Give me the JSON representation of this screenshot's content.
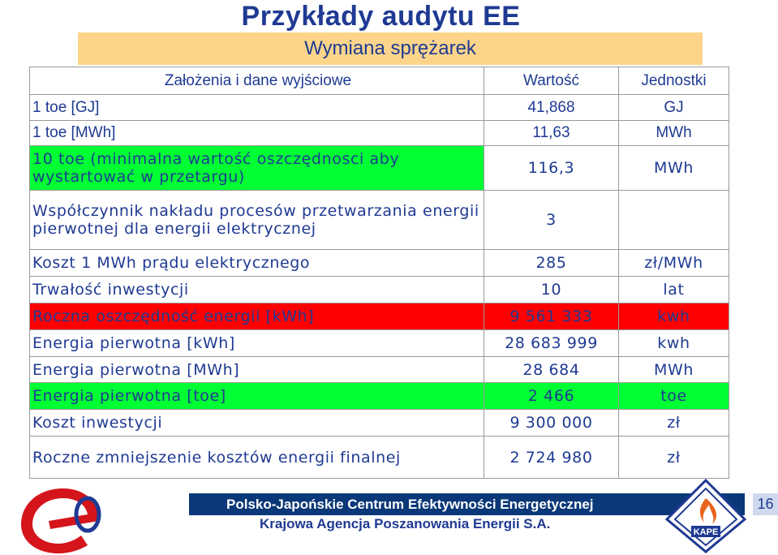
{
  "header": {
    "title": "Przykłady audytu  EE",
    "subtitle": "Wymiana sprężarek"
  },
  "table": {
    "columns": [
      "Założenia i dane wyjściowe",
      "Wartość",
      "Jednostki"
    ],
    "rows": [
      {
        "label": "1 toe [GJ]",
        "value": "41,868",
        "unit": "GJ"
      },
      {
        "label": "1 toe [MWh]",
        "value": "11,63",
        "unit": "MWh"
      },
      {
        "label": "10 toe (minimalna wartość oszczędnosci aby wystartować w przetargu)",
        "value": "116,3",
        "unit": "MWh"
      },
      {
        "label": "Współczynnik nakładu procesów przetwarzania energii pierwotnej dla energii elektrycznej",
        "value": "3",
        "unit": ""
      },
      {
        "label": "Koszt 1 MWh prądu elektrycznego",
        "value": "285",
        "unit": "zł/MWh"
      },
      {
        "label": "Trwałość inwestycji",
        "value": "10",
        "unit": "lat"
      },
      {
        "label": "Roczna oszczędność energii [kWh]",
        "value": "9 561 333",
        "unit": "kwh"
      },
      {
        "label": "Energia pierwotna [kWh]",
        "value": "28 683 999",
        "unit": "kwh"
      },
      {
        "label": "Energia pierwotna [MWh]",
        "value": "28 684",
        "unit": "MWh"
      },
      {
        "label": "Energia pierwotna [toe]",
        "value": "2 466",
        "unit": "toe"
      },
      {
        "label": "Koszt inwestycji",
        "value": "9 300 000",
        "unit": "zł"
      },
      {
        "label": "Roczne zmniejszenie kosztów energii finalnej",
        "value": "2 724 980",
        "unit": "zł"
      }
    ],
    "highlight_colors": {
      "green": "#00ff33",
      "red": "#ff0000"
    }
  },
  "footer": {
    "line1": "Polsko-Japońskie Centrum Efektywności Energetycznej",
    "line2": "Krajowa Agencja Poszanowania Energii S.A.",
    "page": "16",
    "logo_right_text": "KAPE"
  }
}
